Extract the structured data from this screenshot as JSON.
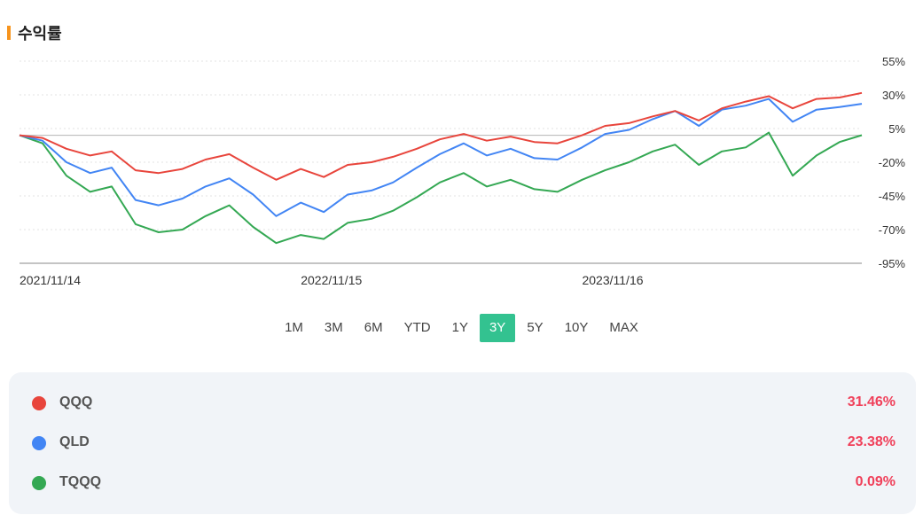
{
  "header": {
    "title": "수익률",
    "accent_color": "#f7941d"
  },
  "chart_data": {
    "type": "line",
    "y_ticks": [
      "55%",
      "30%",
      "5%",
      "-20%",
      "-45%",
      "-70%",
      "-95%"
    ],
    "y_tick_values": [
      55,
      30,
      5,
      -20,
      -45,
      -70,
      -95
    ],
    "ylim": [
      -95,
      55
    ],
    "x_ticks": [
      "2021/11/14",
      "2022/11/15",
      "2023/11/16"
    ],
    "xlim": [
      "2021/11/14",
      "2024/11/14"
    ],
    "grid": true,
    "baseline": 0,
    "series": [
      {
        "name": "QQQ",
        "color": "#e8453c",
        "x": [
          "2021/11/14",
          "2021/12/14",
          "2022/01/14",
          "2022/02/14",
          "2022/03/14",
          "2022/04/14",
          "2022/05/14",
          "2022/06/14",
          "2022/07/14",
          "2022/08/14",
          "2022/09/14",
          "2022/10/14",
          "2022/11/15",
          "2022/12/15",
          "2023/01/15",
          "2023/02/15",
          "2023/03/15",
          "2023/04/15",
          "2023/05/15",
          "2023/06/15",
          "2023/07/15",
          "2023/08/15",
          "2023/09/15",
          "2023/10/15",
          "2023/11/16",
          "2023/12/16",
          "2024/01/16",
          "2024/02/16",
          "2024/03/16",
          "2024/04/16",
          "2024/05/16",
          "2024/06/16",
          "2024/07/16",
          "2024/08/16",
          "2024/09/16",
          "2024/10/16",
          "2024/11/14"
        ],
        "values": [
          0,
          -2,
          -10,
          -15,
          -12,
          -26,
          -28,
          -25,
          -18,
          -14,
          -24,
          -33,
          -25,
          -31,
          -22,
          -20,
          -16,
          -10,
          -3,
          1,
          -4,
          -1,
          -5,
          -6,
          0,
          7,
          9,
          14,
          18,
          11,
          20,
          25,
          29,
          20,
          27,
          28,
          31.46
        ]
      },
      {
        "name": "QLD",
        "color": "#4285f4",
        "x": [
          "2021/11/14",
          "2021/12/14",
          "2022/01/14",
          "2022/02/14",
          "2022/03/14",
          "2022/04/14",
          "2022/05/14",
          "2022/06/14",
          "2022/07/14",
          "2022/08/14",
          "2022/09/14",
          "2022/10/14",
          "2022/11/15",
          "2022/12/15",
          "2023/01/15",
          "2023/02/15",
          "2023/03/15",
          "2023/04/15",
          "2023/05/15",
          "2023/06/15",
          "2023/07/15",
          "2023/08/15",
          "2023/09/15",
          "2023/10/15",
          "2023/11/16",
          "2023/12/16",
          "2024/01/16",
          "2024/02/16",
          "2024/03/16",
          "2024/04/16",
          "2024/05/16",
          "2024/06/16",
          "2024/07/16",
          "2024/08/16",
          "2024/09/16",
          "2024/10/16",
          "2024/11/14"
        ],
        "values": [
          0,
          -4,
          -20,
          -28,
          -24,
          -48,
          -52,
          -47,
          -38,
          -32,
          -44,
          -60,
          -50,
          -57,
          -44,
          -41,
          -35,
          -24,
          -14,
          -6,
          -15,
          -10,
          -17,
          -18,
          -9,
          1,
          4,
          12,
          18,
          7,
          19,
          22,
          27,
          10,
          19,
          21,
          23.38
        ]
      },
      {
        "name": "TQQQ",
        "color": "#34a853",
        "x": [
          "2021/11/14",
          "2021/12/14",
          "2022/01/14",
          "2022/02/14",
          "2022/03/14",
          "2022/04/14",
          "2022/05/14",
          "2022/06/14",
          "2022/07/14",
          "2022/08/14",
          "2022/09/14",
          "2022/10/14",
          "2022/11/15",
          "2022/12/15",
          "2023/01/15",
          "2023/02/15",
          "2023/03/15",
          "2023/04/15",
          "2023/05/15",
          "2023/06/15",
          "2023/07/15",
          "2023/08/15",
          "2023/09/15",
          "2023/10/15",
          "2023/11/16",
          "2023/12/16",
          "2024/01/16",
          "2024/02/16",
          "2024/03/16",
          "2024/04/16",
          "2024/05/16",
          "2024/06/16",
          "2024/07/16",
          "2024/08/16",
          "2024/09/16",
          "2024/10/16",
          "2024/11/14"
        ],
        "values": [
          0,
          -6,
          -30,
          -42,
          -38,
          -66,
          -72,
          -70,
          -60,
          -52,
          -68,
          -80,
          -74,
          -77,
          -65,
          -62,
          -56,
          -46,
          -35,
          -28,
          -38,
          -33,
          -40,
          -42,
          -33,
          -26,
          -20,
          -12,
          -7,
          -22,
          -12,
          -9,
          2,
          -30,
          -15,
          -5,
          0.09
        ]
      }
    ]
  },
  "range_buttons": [
    "1M",
    "3M",
    "6M",
    "YTD",
    "1Y",
    "3Y",
    "5Y",
    "10Y",
    "MAX"
  ],
  "range_active": "3Y",
  "range_active_color": "#33c290",
  "legend": [
    {
      "name": "QQQ",
      "value": "31.46%",
      "color": "#e8453c"
    },
    {
      "name": "QLD",
      "value": "23.38%",
      "color": "#4285f4"
    },
    {
      "name": "TQQQ",
      "value": "0.09%",
      "color": "#34a853"
    }
  ],
  "value_color": "#f0405a"
}
